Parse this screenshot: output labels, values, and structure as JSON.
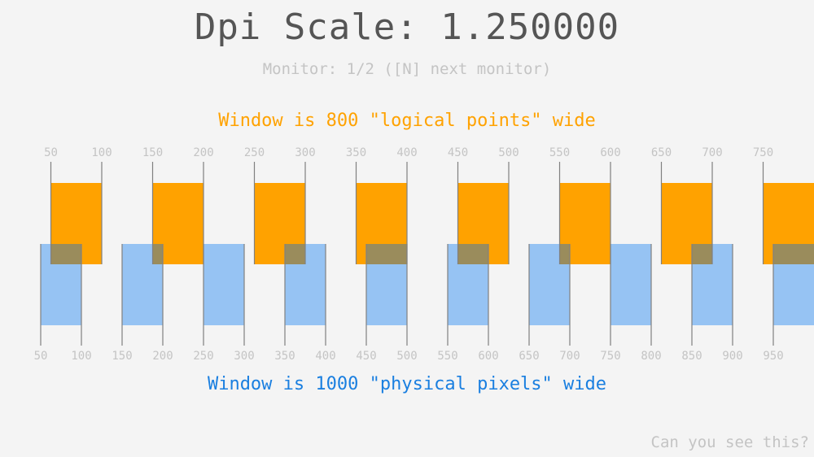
{
  "title": "Dpi Scale: 1.250000",
  "monitor_text": "Monitor: 1/2 ([N] next monitor)",
  "logical_caption": "Window is 800 \"logical points\" wide",
  "physical_caption": "Window is 1000 \"physical pixels\" wide",
  "footer": "Can you see this?",
  "dpi_scale": 1.25,
  "logical_labels": [
    "50",
    "100",
    "150",
    "200",
    "250",
    "300",
    "350",
    "400",
    "450",
    "500",
    "550",
    "600",
    "650",
    "700",
    "750"
  ],
  "physical_labels": [
    "50",
    "100",
    "150",
    "200",
    "250",
    "300",
    "350",
    "400",
    "450",
    "500",
    "550",
    "600",
    "650",
    "700",
    "750",
    "800",
    "850",
    "900",
    "950"
  ],
  "colors": {
    "logical": "#ffa200",
    "physical": "#96c3f3",
    "overlap": "#9a8c5c",
    "line": "#808080",
    "label": "#c4c4c4"
  }
}
